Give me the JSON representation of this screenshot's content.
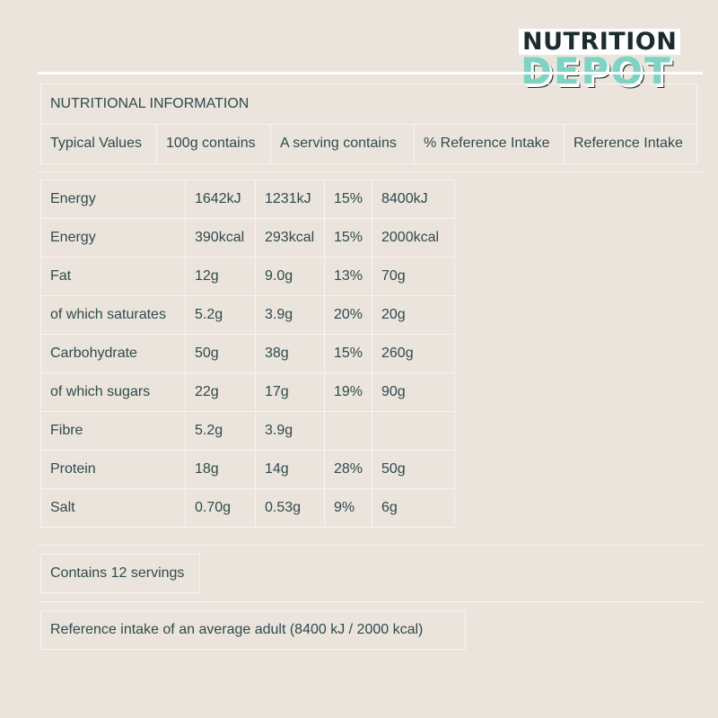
{
  "brand": {
    "line1": "NUTRITION",
    "line2": "DEPOT"
  },
  "section_title": "NUTRITIONAL INFORMATION",
  "headers": [
    "Typical Values",
    "100g contains",
    "A serving contains",
    "% Reference Intake",
    "Reference Intake"
  ],
  "rows": [
    [
      "Energy",
      "1642kJ",
      "1231kJ",
      "15%",
      "8400kJ"
    ],
    [
      "Energy",
      "390kcal",
      "293kcal",
      "15%",
      "2000kcal"
    ],
    [
      "Fat",
      "12g",
      "9.0g",
      "13%",
      "70g"
    ],
    [
      "of which saturates",
      "5.2g",
      "3.9g",
      "20%",
      "20g"
    ],
    [
      "Carbohydrate",
      "50g",
      "38g",
      "15%",
      "260g"
    ],
    [
      "of which sugars",
      "22g",
      "17g",
      "19%",
      "90g"
    ],
    [
      "Fibre",
      "5.2g",
      "3.9g",
      "",
      ""
    ],
    [
      "Protein",
      "18g",
      "14g",
      "28%",
      "50g"
    ],
    [
      "Salt",
      "0.70g",
      "0.53g",
      "9%",
      "6g"
    ]
  ],
  "servings_note": "Contains 12 servings",
  "reference_note": "Reference intake of an average adult (8400 kJ / 2000 kcal)",
  "colors": {
    "background": "#ebe4dc",
    "text": "#2f4a4c",
    "logo_accent": "#7ed3c2",
    "rule": "#ffffff"
  }
}
